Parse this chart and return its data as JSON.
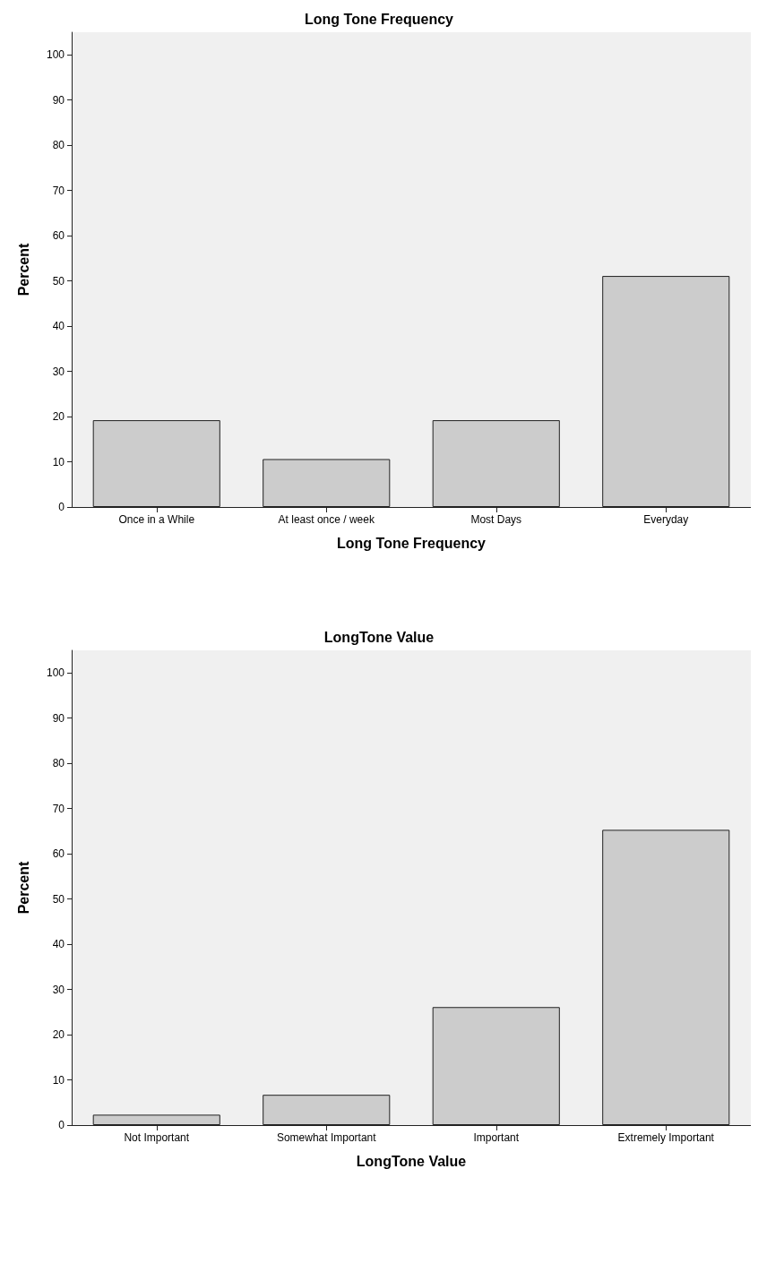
{
  "chart_data": [
    {
      "type": "bar",
      "title": "Long Tone Frequency",
      "xlabel": "Long Tone Frequency",
      "ylabel": "Percent",
      "categories": [
        "Once in a While",
        "At least once / week",
        "Most Days",
        "Everyday"
      ],
      "values": [
        19.2,
        10.6,
        19.2,
        51.1
      ],
      "color": "#cccccc",
      "ylim": [
        0,
        105
      ],
      "yticks": [
        0,
        10,
        20,
        30,
        40,
        50,
        60,
        70,
        80,
        90,
        100
      ],
      "grid": false
    },
    {
      "type": "bar",
      "title": "LongTone Value",
      "xlabel": "LongTone Value",
      "ylabel": "Percent",
      "categories": [
        "Not Important",
        "Somewhat Important",
        "Important",
        "Extremely Important"
      ],
      "values": [
        2.3,
        6.7,
        26.1,
        65.3
      ],
      "color": "#cccccc",
      "ylim": [
        0,
        105
      ],
      "yticks": [
        0,
        10,
        20,
        30,
        40,
        50,
        60,
        70,
        80,
        90,
        100
      ],
      "grid": false
    }
  ]
}
